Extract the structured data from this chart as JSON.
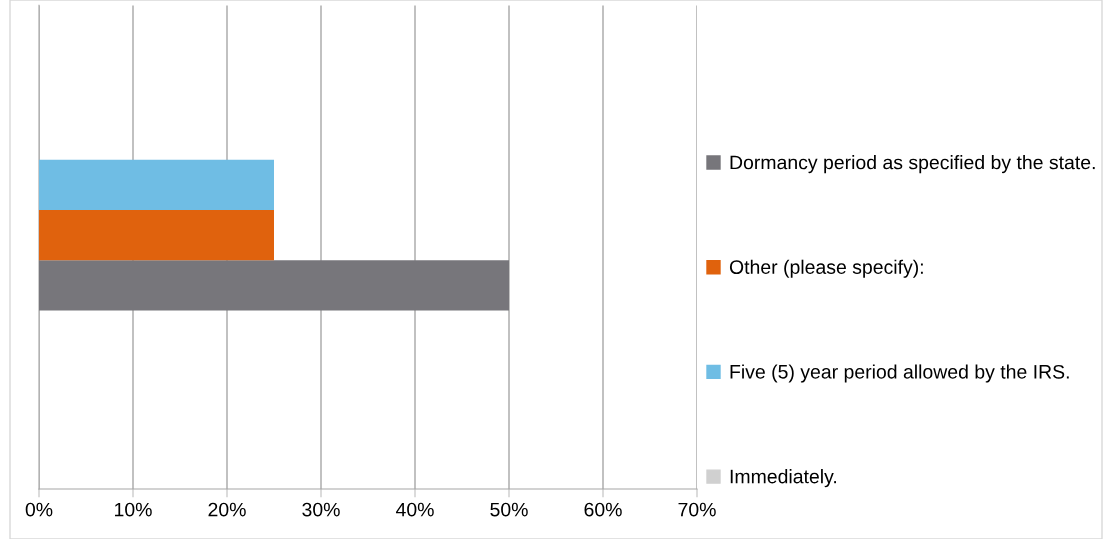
{
  "chart_data": {
    "type": "bar",
    "orientation": "horizontal",
    "categories": [
      null
    ],
    "series": [
      {
        "name": "Dormancy period as specified by the state.",
        "color": "#77767b",
        "values": [
          50
        ]
      },
      {
        "name": "Other (please specify):",
        "color": "#e0620d",
        "values": [
          25
        ]
      },
      {
        "name": "Five (5) year period allowed by the IRS.",
        "color": "#6fbde4",
        "values": [
          25
        ]
      },
      {
        "name": "Immediately.",
        "color": "#d0d0d0",
        "values": [
          0
        ]
      }
    ],
    "xlim": [
      0,
      70
    ],
    "xticks": [
      {
        "value": 0,
        "label": "0%"
      },
      {
        "value": 10,
        "label": "10%"
      },
      {
        "value": 20,
        "label": "20%"
      },
      {
        "value": 30,
        "label": "30%"
      },
      {
        "value": 40,
        "label": "40%"
      },
      {
        "value": 50,
        "label": "50%"
      },
      {
        "value": 60,
        "label": "60%"
      },
      {
        "value": 70,
        "label": "70%"
      }
    ],
    "grid": "x",
    "legend": "right"
  }
}
